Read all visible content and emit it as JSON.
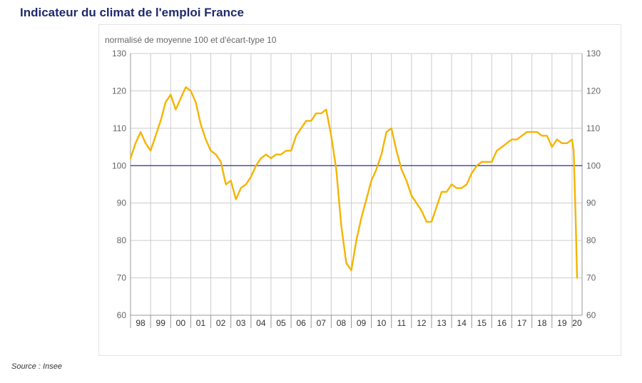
{
  "page": {
    "title": "Indicateur du climat de l'emploi France",
    "source": "Source : Insee"
  },
  "colors": {
    "line": "#f5b400",
    "reference": "#2e3192",
    "grid": "#cccccc",
    "axis": "#999999",
    "text": "#666666",
    "title": "#1f2a6b"
  },
  "chart_data": {
    "type": "line",
    "title": "",
    "subtitle": "normalisé de moyenne 100 et d'écart-type 10",
    "xlabel": "",
    "ylabel": "",
    "ylim": [
      60,
      130
    ],
    "yticks": [
      60,
      70,
      80,
      90,
      100,
      110,
      120,
      130
    ],
    "secondary_yaxis": true,
    "x_unit": "year",
    "x_range": [
      1998,
      2020.5
    ],
    "xtick_labels": [
      "98",
      "99",
      "00",
      "01",
      "02",
      "03",
      "04",
      "05",
      "06",
      "07",
      "08",
      "09",
      "10",
      "11",
      "12",
      "13",
      "14",
      "15",
      "16",
      "17",
      "18",
      "19",
      "20"
    ],
    "grid": "vertical and horizontal",
    "reference_line": 100,
    "series": [
      {
        "values_x": [
          1998.0,
          1998.25,
          1998.5,
          1998.75,
          1999.0,
          1999.25,
          1999.5,
          1999.75,
          2000.0,
          2000.25,
          2000.5,
          2000.75,
          2001.0,
          2001.25,
          2001.5,
          2001.75,
          2002.0,
          2002.25,
          2002.5,
          2002.75,
          2003.0,
          2003.25,
          2003.5,
          2003.75,
          2004.0,
          2004.25,
          2004.5,
          2004.75,
          2005.0,
          2005.25,
          2005.5,
          2005.75,
          2006.0,
          2006.25,
          2006.5,
          2006.75,
          2007.0,
          2007.25,
          2007.5,
          2007.75,
          2008.0,
          2008.25,
          2008.5,
          2008.75,
          2009.0,
          2009.25,
          2009.5,
          2009.75,
          2010.0,
          2010.25,
          2010.5,
          2010.75,
          2011.0,
          2011.25,
          2011.5,
          2011.75,
          2012.0,
          2012.25,
          2012.5,
          2012.75,
          2013.0,
          2013.25,
          2013.5,
          2013.75,
          2014.0,
          2014.25,
          2014.5,
          2014.75,
          2015.0,
          2015.25,
          2015.5,
          2015.75,
          2016.0,
          2016.25,
          2016.5,
          2016.75,
          2017.0,
          2017.25,
          2017.5,
          2017.75,
          2018.0,
          2018.25,
          2018.5,
          2018.75,
          2019.0,
          2019.25,
          2019.5,
          2019.75,
          2020.0,
          2020.08,
          2020.17,
          2020.25
        ],
        "values_y": [
          102,
          106,
          109,
          106,
          104,
          108,
          112,
          117,
          119,
          115,
          118,
          121,
          120,
          117,
          111,
          107,
          104,
          103,
          101,
          95,
          96,
          91,
          94,
          95,
          97,
          100,
          102,
          103,
          102,
          103,
          103,
          104,
          104,
          108,
          110,
          112,
          112,
          114,
          114,
          115,
          108,
          99,
          84,
          74,
          72,
          80,
          86,
          91,
          96,
          99,
          103,
          109,
          110,
          104,
          99,
          96,
          92,
          90,
          88,
          85,
          85,
          89,
          93,
          93,
          95,
          94,
          94,
          95,
          98,
          100,
          101,
          101,
          101,
          104,
          105,
          106,
          107,
          107,
          108,
          109,
          109,
          109,
          108,
          108,
          105,
          107,
          106,
          106,
          107,
          104,
          88,
          70
        ]
      }
    ]
  }
}
